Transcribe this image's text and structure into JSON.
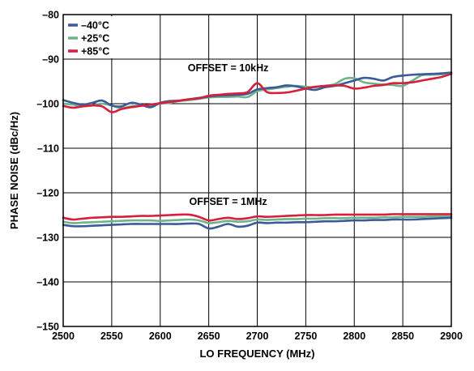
{
  "chart_data": {
    "type": "line",
    "title": "",
    "xlabel": "LO FREQUENCY (MHz)",
    "ylabel": "PHASE NOISE (dBc/Hz)",
    "xlim": [
      2500,
      2900
    ],
    "ylim": [
      -150,
      -80
    ],
    "xticks": [
      2500,
      2550,
      2600,
      2650,
      2700,
      2750,
      2800,
      2850,
      2900
    ],
    "yticks": [
      -150,
      -140,
      -130,
      -120,
      -110,
      -100,
      -90,
      -80
    ],
    "ytick_labels": [
      "–150",
      "–140",
      "–130",
      "–120",
      "–110",
      "–100",
      "–90",
      "–80"
    ],
    "grid": true,
    "legend_position": "top-left",
    "annotations": [
      {
        "text": "OFFSET = 10kHz",
        "x": 2670,
        "y": -92
      },
      {
        "text": "OFFSET = 1MHz",
        "x": 2670,
        "y": -122
      }
    ],
    "series": [
      {
        "name": "–40°C",
        "group": "10kHz",
        "color": "#3b5a96",
        "x": [
          2500,
          2510,
          2520,
          2530,
          2540,
          2550,
          2560,
          2570,
          2580,
          2590,
          2600,
          2610,
          2620,
          2630,
          2640,
          2650,
          2660,
          2670,
          2680,
          2690,
          2700,
          2710,
          2720,
          2730,
          2740,
          2750,
          2760,
          2770,
          2780,
          2790,
          2800,
          2810,
          2820,
          2830,
          2840,
          2850,
          2860,
          2870,
          2880,
          2890,
          2900
        ],
        "y": [
          -99.2,
          -99.8,
          -100.2,
          -99.8,
          -99.3,
          -100.4,
          -100.6,
          -99.8,
          -100.2,
          -100.8,
          -99.8,
          -99.4,
          -99.3,
          -99.0,
          -98.7,
          -98.4,
          -98.2,
          -98.1,
          -98.0,
          -97.8,
          -96.8,
          -96.5,
          -96.3,
          -95.9,
          -96.1,
          -96.6,
          -96.9,
          -96.3,
          -96.0,
          -95.4,
          -94.8,
          -94.2,
          -94.4,
          -94.8,
          -94.0,
          -93.7,
          -93.5,
          -93.4,
          -93.3,
          -93.2,
          -93.0
        ]
      },
      {
        "name": "+25°C",
        "group": "10kHz",
        "color": "#6db48a",
        "x": [
          2500,
          2510,
          2520,
          2530,
          2540,
          2550,
          2560,
          2570,
          2580,
          2590,
          2600,
          2610,
          2620,
          2630,
          2640,
          2650,
          2660,
          2670,
          2680,
          2690,
          2700,
          2710,
          2720,
          2730,
          2740,
          2750,
          2760,
          2770,
          2780,
          2790,
          2800,
          2810,
          2820,
          2830,
          2840,
          2850,
          2860,
          2870,
          2880,
          2890,
          2900
        ],
        "y": [
          -100.0,
          -100.2,
          -100.6,
          -100.4,
          -100.0,
          -100.4,
          -101.0,
          -100.6,
          -100.4,
          -100.4,
          -100.0,
          -99.8,
          -99.4,
          -99.2,
          -98.9,
          -98.6,
          -98.5,
          -98.5,
          -98.4,
          -98.5,
          -97.2,
          -96.8,
          -96.5,
          -96.2,
          -96.0,
          -96.2,
          -96.3,
          -96.0,
          -95.6,
          -94.4,
          -94.3,
          -95.2,
          -95.5,
          -95.7,
          -95.8,
          -96.0,
          -94.8,
          -93.6,
          -93.5,
          -93.4,
          -93.2
        ]
      },
      {
        "name": "+85°C",
        "group": "10kHz",
        "color": "#d81e3c",
        "x": [
          2500,
          2510,
          2520,
          2530,
          2540,
          2550,
          2560,
          2570,
          2580,
          2590,
          2600,
          2610,
          2620,
          2630,
          2640,
          2650,
          2660,
          2670,
          2680,
          2690,
          2700,
          2710,
          2720,
          2730,
          2740,
          2750,
          2760,
          2770,
          2780,
          2790,
          2800,
          2810,
          2820,
          2830,
          2840,
          2850,
          2860,
          2870,
          2880,
          2890,
          2900
        ],
        "y": [
          -100.5,
          -100.9,
          -100.6,
          -100.4,
          -100.6,
          -101.9,
          -101.2,
          -100.8,
          -100.5,
          -100.2,
          -99.9,
          -99.6,
          -99.3,
          -99.0,
          -98.8,
          -98.2,
          -98.0,
          -97.8,
          -97.7,
          -97.4,
          -95.4,
          -97.4,
          -97.6,
          -97.5,
          -97.1,
          -96.6,
          -96.2,
          -96.0,
          -95.9,
          -96.0,
          -96.6,
          -96.4,
          -96.0,
          -95.8,
          -95.4,
          -95.4,
          -95.2,
          -94.8,
          -94.4,
          -94.0,
          -93.3
        ]
      },
      {
        "name": "–40°C",
        "group": "1MHz",
        "color": "#3b5a96",
        "x": [
          2500,
          2510,
          2520,
          2530,
          2540,
          2550,
          2560,
          2570,
          2580,
          2590,
          2600,
          2610,
          2620,
          2630,
          2640,
          2650,
          2660,
          2670,
          2680,
          2690,
          2700,
          2710,
          2720,
          2730,
          2740,
          2750,
          2760,
          2770,
          2780,
          2790,
          2800,
          2810,
          2820,
          2830,
          2840,
          2850,
          2860,
          2870,
          2880,
          2890,
          2900
        ],
        "y": [
          -127.2,
          -127.5,
          -127.5,
          -127.4,
          -127.3,
          -127.2,
          -127.1,
          -127.0,
          -127.0,
          -127.0,
          -127.0,
          -127.0,
          -127.0,
          -126.9,
          -127.0,
          -128.0,
          -127.6,
          -127.0,
          -127.6,
          -127.4,
          -126.7,
          -126.8,
          -126.7,
          -126.7,
          -126.6,
          -126.6,
          -126.5,
          -126.4,
          -126.4,
          -126.3,
          -126.2,
          -126.2,
          -126.1,
          -126.1,
          -126.0,
          -126.0,
          -126.0,
          -125.9,
          -125.8,
          -125.7,
          -125.6
        ]
      },
      {
        "name": "+25°C",
        "group": "1MHz",
        "color": "#6db48a",
        "x": [
          2500,
          2510,
          2520,
          2530,
          2540,
          2550,
          2560,
          2570,
          2580,
          2590,
          2600,
          2610,
          2620,
          2630,
          2640,
          2650,
          2660,
          2670,
          2680,
          2690,
          2700,
          2710,
          2720,
          2730,
          2740,
          2750,
          2760,
          2770,
          2780,
          2790,
          2800,
          2810,
          2820,
          2830,
          2840,
          2850,
          2860,
          2870,
          2880,
          2890,
          2900
        ],
        "y": [
          -126.5,
          -126.8,
          -126.7,
          -126.6,
          -126.5,
          -126.4,
          -126.3,
          -126.2,
          -126.2,
          -126.2,
          -126.3,
          -126.2,
          -126.1,
          -126.0,
          -126.2,
          -126.8,
          -126.6,
          -126.3,
          -126.5,
          -126.4,
          -126.0,
          -126.1,
          -126.0,
          -125.9,
          -125.9,
          -125.8,
          -125.8,
          -125.7,
          -125.7,
          -125.7,
          -125.6,
          -125.6,
          -125.6,
          -125.5,
          -125.5,
          -125.4,
          -125.4,
          -125.4,
          -125.3,
          -125.3,
          -125.3
        ]
      },
      {
        "name": "+85°C",
        "group": "1MHz",
        "color": "#d81e3c",
        "x": [
          2500,
          2510,
          2520,
          2530,
          2540,
          2550,
          2560,
          2570,
          2580,
          2590,
          2600,
          2610,
          2620,
          2630,
          2640,
          2650,
          2660,
          2670,
          2680,
          2690,
          2700,
          2710,
          2720,
          2730,
          2740,
          2750,
          2760,
          2770,
          2780,
          2790,
          2800,
          2810,
          2820,
          2830,
          2840,
          2850,
          2860,
          2870,
          2880,
          2890,
          2900
        ],
        "y": [
          -125.6,
          -126.0,
          -125.8,
          -125.6,
          -125.5,
          -125.4,
          -125.4,
          -125.3,
          -125.2,
          -125.2,
          -125.1,
          -125.0,
          -124.9,
          -124.9,
          -125.4,
          -126.2,
          -125.9,
          -125.6,
          -125.9,
          -125.7,
          -125.3,
          -125.4,
          -125.3,
          -125.2,
          -125.1,
          -125.0,
          -125.0,
          -125.0,
          -124.9,
          -124.9,
          -124.9,
          -124.9,
          -124.9,
          -124.9,
          -124.8,
          -124.8,
          -124.8,
          -124.8,
          -124.8,
          -124.8,
          -124.8
        ]
      }
    ]
  }
}
